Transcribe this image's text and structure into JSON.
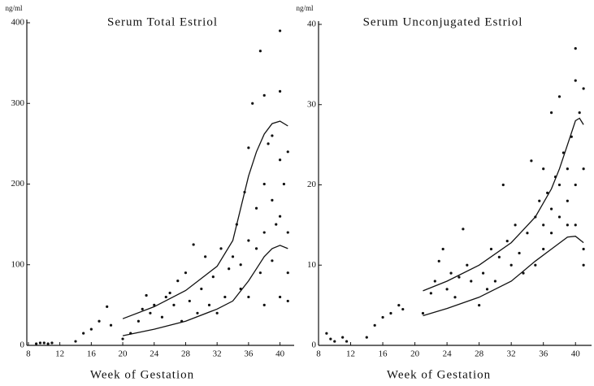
{
  "chart_data": [
    {
      "type": "scatter",
      "title": "Serum Total Estriol",
      "y_unit": "ng/ml",
      "x_label": "Week  of Gestation",
      "xlim": [
        7.8,
        41.8
      ],
      "ylim": [
        0,
        400
      ],
      "xticks": [
        8,
        12,
        16,
        20,
        24,
        28,
        32,
        36,
        40
      ],
      "yticks": [
        0,
        100,
        200,
        300,
        400
      ],
      "series": [
        {
          "type": "scatter",
          "color": "#111111",
          "x": [
            9,
            9.5,
            10,
            10.5,
            11,
            14,
            15,
            16,
            17,
            18,
            18.5,
            20,
            21,
            22,
            22.5,
            23,
            23.5,
            24,
            25,
            25.5,
            26,
            26.5,
            27,
            27.5,
            28,
            28.5,
            29,
            29.5,
            30,
            30.5,
            31,
            31.5,
            32,
            32.5,
            33,
            33.5,
            34,
            34.5,
            35,
            35,
            35.5,
            36,
            36,
            36,
            36.5,
            37,
            37,
            37.5,
            37.5,
            38,
            38,
            38,
            38,
            38.5,
            39,
            39,
            39,
            39.5,
            40,
            40,
            40,
            40,
            40,
            40.5,
            41,
            41,
            41,
            41
          ],
          "values": [
            2,
            3,
            3,
            2,
            3,
            5,
            15,
            20,
            30,
            48,
            25,
            8,
            15,
            30,
            45,
            62,
            40,
            50,
            35,
            60,
            65,
            50,
            80,
            30,
            90,
            55,
            125,
            40,
            70,
            110,
            50,
            85,
            40,
            120,
            60,
            95,
            110,
            150,
            70,
            100,
            190,
            245,
            130,
            60,
            300,
            170,
            120,
            365,
            90,
            310,
            200,
            140,
            50,
            250,
            260,
            180,
            105,
            150,
            390,
            315,
            230,
            160,
            60,
            200,
            240,
            140,
            90,
            55
          ]
        },
        {
          "type": "line",
          "color": "#111111",
          "x": [
            20,
            24,
            28,
            32,
            34,
            35,
            36,
            37,
            38,
            39,
            40,
            41
          ],
          "values": [
            33,
            48,
            68,
            98,
            130,
            170,
            210,
            240,
            262,
            275,
            278,
            272
          ]
        },
        {
          "type": "line",
          "color": "#111111",
          "x": [
            20,
            24,
            28,
            32,
            34,
            36,
            37,
            38,
            39,
            40,
            41
          ],
          "values": [
            12,
            20,
            30,
            45,
            55,
            80,
            95,
            110,
            120,
            124,
            120
          ]
        }
      ]
    },
    {
      "type": "scatter",
      "title": "Serum Unconjugated Estriol",
      "y_unit": "ng/ml",
      "x_label": "Week of Gestation",
      "xlim": [
        8,
        42
      ],
      "ylim": [
        0,
        40
      ],
      "xticks": [
        8,
        12,
        16,
        20,
        24,
        28,
        32,
        36,
        40
      ],
      "yticks": [
        0,
        10,
        20,
        30,
        40
      ],
      "series": [
        {
          "type": "scatter",
          "color": "#111111",
          "x": [
            9,
            9.5,
            10,
            11,
            11.5,
            14,
            15,
            16,
            17,
            18,
            18.5,
            21,
            22,
            22.5,
            23,
            23.5,
            24,
            24.5,
            25,
            25.5,
            26,
            26.5,
            27,
            28,
            28.5,
            29,
            29.5,
            30,
            30.5,
            31,
            31.5,
            32,
            32.5,
            33,
            33.5,
            34,
            34.5,
            35,
            35,
            35.5,
            36,
            36,
            36,
            36.5,
            37,
            37,
            37,
            37.5,
            38,
            38,
            38,
            38.5,
            39,
            39,
            39,
            39.5,
            40,
            40,
            40,
            40,
            40.5,
            41,
            41,
            41,
            41
          ],
          "values": [
            1.5,
            0.8,
            0.5,
            1,
            0.5,
            1,
            2.5,
            3.5,
            4,
            5,
            4.5,
            4,
            6.5,
            8,
            10.5,
            12,
            7,
            9,
            6,
            8.5,
            14.5,
            10,
            8,
            5,
            9,
            7,
            12,
            8,
            11,
            20,
            13,
            10,
            15,
            11.5,
            9,
            14,
            23,
            16,
            10,
            18,
            22,
            15,
            12,
            19,
            29,
            17,
            14,
            21,
            31,
            20,
            16,
            24,
            22,
            18,
            15,
            26,
            37,
            33,
            20,
            15,
            29,
            32,
            22,
            12,
            10
          ]
        },
        {
          "type": "line",
          "color": "#111111",
          "x": [
            21,
            24,
            28,
            32,
            35,
            37,
            38,
            39,
            40,
            40.5,
            41
          ],
          "values": [
            6.8,
            8,
            10,
            12.8,
            16,
            19.5,
            22,
            25,
            28,
            28.3,
            27.5
          ]
        },
        {
          "type": "line",
          "color": "#111111",
          "x": [
            21,
            24,
            28,
            32,
            35,
            37,
            39,
            40,
            41
          ],
          "values": [
            3.7,
            4.6,
            6,
            8,
            10.5,
            12,
            13.5,
            13.6,
            12.8
          ]
        }
      ]
    }
  ]
}
